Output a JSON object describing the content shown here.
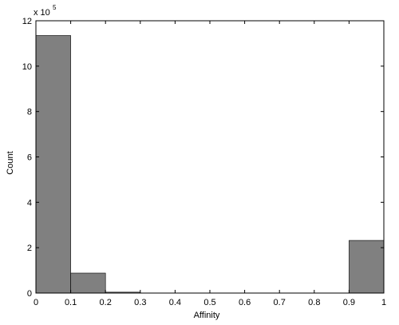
{
  "chart_data": {
    "type": "histogram",
    "xlabel": "Affinity",
    "ylabel": "Count",
    "y_multiplier": {
      "base": "x 10",
      "exponent": "5"
    },
    "bins": [
      0,
      0.1,
      0.2,
      0.3,
      0.4,
      0.5,
      0.6,
      0.7,
      0.8,
      0.9,
      1
    ],
    "values": [
      11.35,
      0.88,
      0.04,
      0,
      0,
      0,
      0,
      0,
      0,
      2.32
    ],
    "color": "#808080",
    "xlim": [
      0,
      1
    ],
    "xticks": [
      0,
      0.1,
      0.2,
      0.3,
      0.4,
      0.5,
      0.6,
      0.7,
      0.8,
      0.9,
      1
    ],
    "ylim": [
      0,
      12
    ],
    "yticks": [
      0,
      2,
      4,
      6,
      8,
      10,
      12
    ]
  }
}
